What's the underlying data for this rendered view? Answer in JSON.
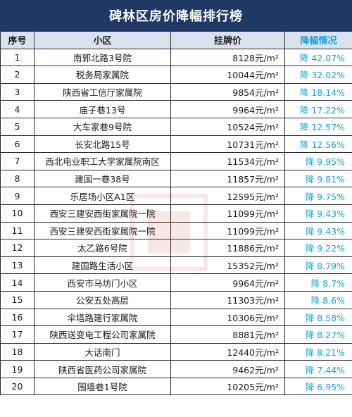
{
  "title": "碑林区房价降幅排行榜",
  "columns": [
    "序号",
    "小区",
    "挂牌价",
    "降幅情况"
  ],
  "rows": [
    {
      "idx": "1",
      "name": "南郭北路3号院",
      "price": "8128元/m²",
      "drop": "降 42.07%"
    },
    {
      "idx": "2",
      "name": "税务局家属院",
      "price": "10044元/m²",
      "drop": "降 32.02%"
    },
    {
      "idx": "3",
      "name": "陕西省工信厅家属院",
      "price": "9854元/m²",
      "drop": "降 18.14%"
    },
    {
      "idx": "4",
      "name": "庙子巷13号",
      "price": "9964元/m²",
      "drop": "降 17.22%"
    },
    {
      "idx": "5",
      "name": "大车家巷9号院",
      "price": "10524元/m²",
      "drop": "降 12.57%"
    },
    {
      "idx": "6",
      "name": "长安北路15号",
      "price": "10731元/m²",
      "drop": "降 12.56%"
    },
    {
      "idx": "7",
      "name": "西北电业职工大学家属院南区",
      "price": "11534元/m²",
      "drop": "降 9.95%"
    },
    {
      "idx": "8",
      "name": "建国一巷38号",
      "price": "11857元/m²",
      "drop": "降 9.81%"
    },
    {
      "idx": "9",
      "name": "乐居场小区A1区",
      "price": "12595元/m²",
      "drop": "降 9.75%"
    },
    {
      "idx": "10",
      "name": "西安三建安西街家属院一院",
      "price": "11099元/m²",
      "drop": "降 9.43%"
    },
    {
      "idx": "11",
      "name": "西安三建安西街家属院一院",
      "price": "11099元/m²",
      "drop": "降 9.43%"
    },
    {
      "idx": "12",
      "name": "太乙路6号院",
      "price": "11886元/m²",
      "drop": "降 9.22%"
    },
    {
      "idx": "13",
      "name": "建国路生活小区",
      "price": "15352元/m²",
      "drop": "降 8.79%"
    },
    {
      "idx": "14",
      "name": "西安市马坊门小区",
      "price": "9964元/m²",
      "drop": "降 8.7%"
    },
    {
      "idx": "15",
      "name": "公安五处高层",
      "price": "11303元/m²",
      "drop": "降 8.6%"
    },
    {
      "idx": "16",
      "name": "伞塔路建行家属院",
      "price": "10306元/m²",
      "drop": "降 8.58%"
    },
    {
      "idx": "17",
      "name": "陕西送变电工程公司家属院",
      "price": "8881元/m²",
      "drop": "降 8.27%"
    },
    {
      "idx": "18",
      "name": "大话南门",
      "price": "12440元/m²",
      "drop": "降 8.21%"
    },
    {
      "idx": "19",
      "name": "陕西省医药公司家属院",
      "price": "9462元/m²",
      "drop": "降 7.44%"
    },
    {
      "idx": "20",
      "name": "围墙巷1号院",
      "price": "10205元/m²",
      "drop": "降 6.95%"
    }
  ],
  "colors": {
    "header_bg": "#203864",
    "col_header_bg": "#dbe2ef",
    "accent": "#16a3d9"
  }
}
